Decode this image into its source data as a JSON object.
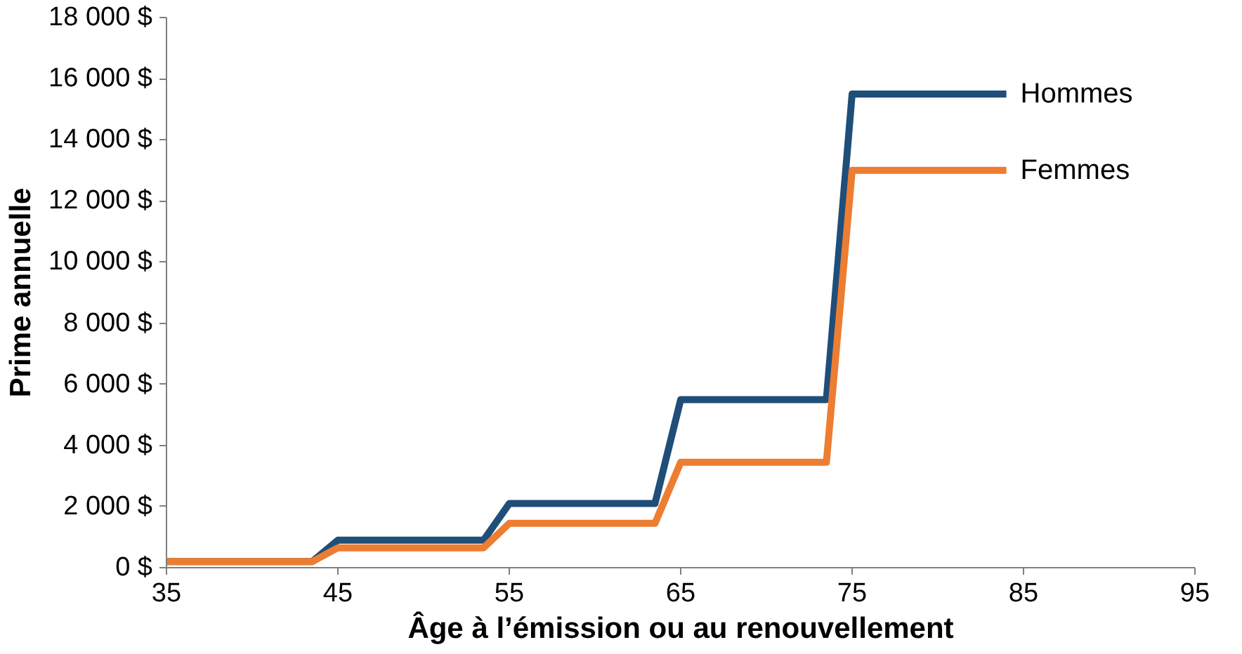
{
  "chart_data": {
    "type": "line",
    "xlabel": "Âge à l’émission ou au renouvellement",
    "ylabel": "Prime annuelle",
    "xlim": [
      35,
      95
    ],
    "xticks": [
      35,
      45,
      55,
      65,
      75,
      85,
      95
    ],
    "ylim": [
      0,
      18000
    ],
    "yticks": [
      {
        "value": 0,
        "label": "0 $"
      },
      {
        "value": 2000,
        "label": "2 000 $"
      },
      {
        "value": 4000,
        "label": "4 000 $"
      },
      {
        "value": 6000,
        "label": "6 000 $"
      },
      {
        "value": 8000,
        "label": "8 000 $"
      },
      {
        "value": 10000,
        "label": "10 000 $"
      },
      {
        "value": 12000,
        "label": "12 000 $"
      },
      {
        "value": 14000,
        "label": "14 000 $"
      },
      {
        "value": 16000,
        "label": "16 000 $"
      },
      {
        "value": 18000,
        "label": "18 000 $"
      }
    ],
    "grid": false,
    "legend": false,
    "line_style": "solid",
    "x": [
      35,
      43.5,
      45,
      53.5,
      55,
      63.5,
      65,
      73.5,
      75,
      84
    ],
    "series": [
      {
        "name": "Hommes",
        "color": "#1f4e79",
        "values": [
          200,
          200,
          900,
          900,
          2100,
          2100,
          5500,
          5500,
          15500,
          15500
        ]
      },
      {
        "name": "Femmes",
        "color": "#ed7d31",
        "values": [
          200,
          200,
          650,
          650,
          1450,
          1450,
          3450,
          3450,
          13000,
          13000
        ]
      }
    ]
  }
}
